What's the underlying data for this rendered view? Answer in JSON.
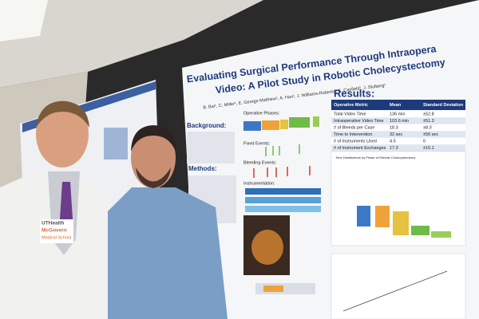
{
  "poster": {
    "title_line1": "Evaluating Surgical Performance Through Intraopera",
    "title_line2": "Video: A Pilot Study in Robotic Cholecystectomy",
    "authors": "B. Bai¹, C. Miller¹, E. George Matthew¹, A. Han¹, J. Williams-Roberts¹, E. Canfield¹, J. Stulberg¹",
    "sections": {
      "background": "Background:",
      "methods": "Methods:",
      "results": "Results:"
    },
    "figure_labels": [
      "Operative Phases:",
      "Fixed Events:",
      "Bleeding Events:",
      "Instrumentation:"
    ],
    "table": {
      "header": [
        "Operative Metric",
        "Mean",
        "Standard Deviation"
      ],
      "rows": [
        [
          "Total Video Time",
          "136 min",
          "±52.8"
        ],
        [
          "Intraoperative Video Time",
          "103.6 min",
          "±51.3"
        ],
        [
          "# of Bleeds per Case",
          "18.3",
          "±8.3"
        ],
        [
          "Time to Intervention",
          "32 sec",
          "±56 sec"
        ],
        [
          "# of Instruments Used",
          "4.5",
          "0"
        ],
        [
          "# of Instrument Exchanges",
          "17.3",
          "±15.1"
        ]
      ]
    },
    "chart_title": "Time Distributions by Phase of Robotic Cholecystectomy"
  },
  "badge": {
    "line1": "UTHealth",
    "line2": "McGovern",
    "line3": "Medical School"
  }
}
